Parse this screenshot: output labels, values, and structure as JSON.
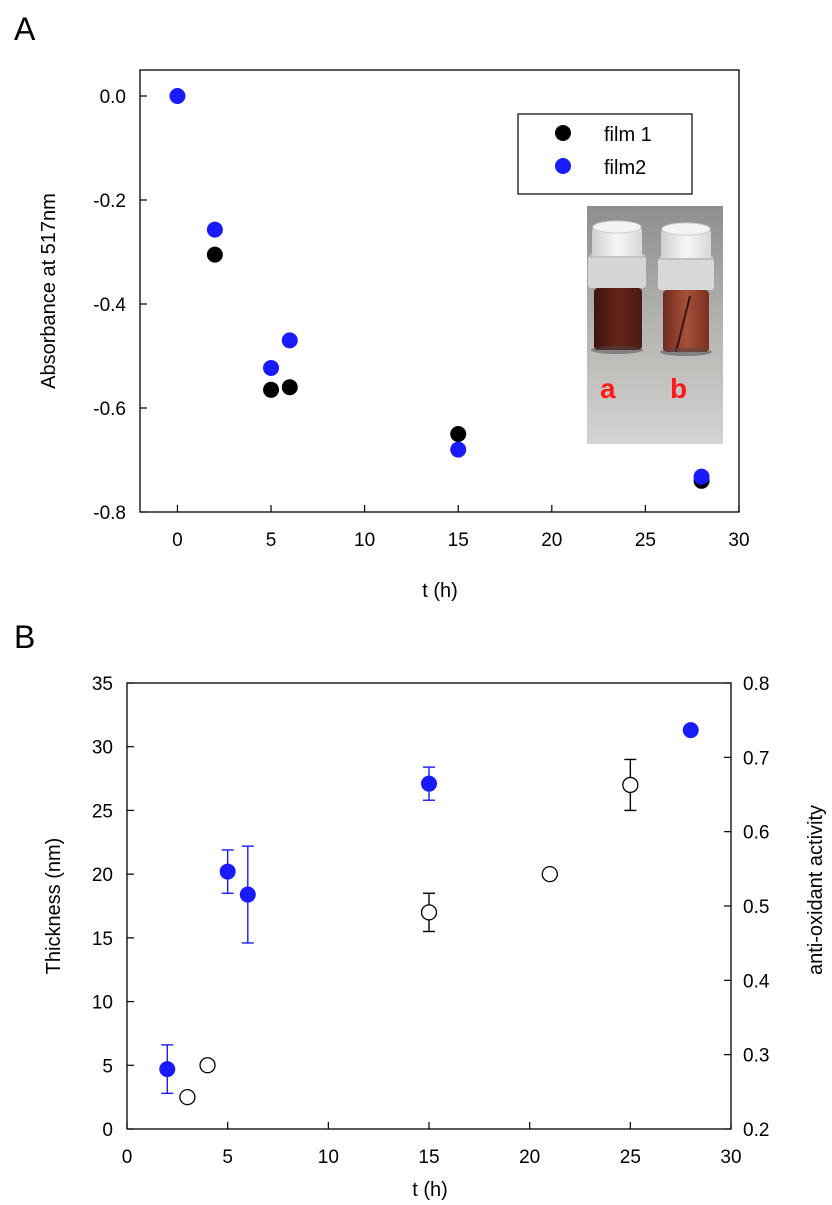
{
  "panels": {
    "a": {
      "letter": "A"
    },
    "b": {
      "letter": "B"
    }
  },
  "colors": {
    "film1": "#000000",
    "film2": "#1a1aff",
    "errorbar_blue": "#1a1aff",
    "errorbar_black": "#000000"
  },
  "inset": {
    "label_a": "a",
    "label_b": "b"
  },
  "chart_data": [
    {
      "type": "scatter",
      "title": "",
      "xlabel": "t (h)",
      "ylabel": "Absorbance at 517nm",
      "xlim": [
        -2,
        30
      ],
      "ylim": [
        -0.8,
        0.05
      ],
      "xticks": [
        0,
        5,
        10,
        15,
        20,
        25,
        30
      ],
      "yticks": [
        0.0,
        -0.2,
        -0.4,
        -0.6,
        -0.8
      ],
      "ytick_labels": [
        "0.0",
        "-0.2",
        "-0.4",
        "-0.6",
        "-0.8"
      ],
      "legend_position": "top-right",
      "series": [
        {
          "name": "film 1",
          "color": "#000000",
          "x": [
            2,
            5,
            6,
            15,
            28
          ],
          "y": [
            -0.305,
            -0.565,
            -0.56,
            -0.65,
            -0.74
          ]
        },
        {
          "name": "film2",
          "color": "#1a1aff",
          "x": [
            0,
            2,
            5,
            6,
            15,
            28
          ],
          "y": [
            0.0,
            -0.257,
            -0.523,
            -0.47,
            -0.68,
            -0.732
          ]
        }
      ]
    },
    {
      "type": "scatter",
      "title": "",
      "xlabel": "t (h)",
      "ylabel": "Thickness (nm)",
      "y2label": "anti-oxidant activity",
      "xlim": [
        0,
        30
      ],
      "ylim": [
        0,
        35
      ],
      "y2lim": [
        0.2,
        0.8
      ],
      "xticks": [
        0,
        5,
        10,
        15,
        20,
        25,
        30
      ],
      "yticks": [
        0,
        5,
        10,
        15,
        20,
        25,
        30,
        35
      ],
      "y2ticks": [
        0.2,
        0.3,
        0.4,
        0.5,
        0.6,
        0.7,
        0.8
      ],
      "y2tick_labels": [
        "0.2",
        "0.3",
        "0.4",
        "0.5",
        "0.6",
        "0.7",
        "0.8"
      ],
      "series": [
        {
          "axis": "left",
          "style": "filled",
          "color": "#1a1aff",
          "x": [
            2,
            5,
            6,
            15,
            28
          ],
          "y": [
            4.7,
            20.2,
            18.4,
            27.1,
            31.3
          ],
          "err": [
            1.9,
            1.7,
            3.8,
            1.3,
            0
          ]
        },
        {
          "axis": "left",
          "style": "open",
          "color": "#000000",
          "x": [
            3,
            4,
            15,
            21,
            25
          ],
          "y": [
            2.5,
            5.0,
            17.0,
            20.0,
            27.0
          ],
          "err": [
            0,
            0,
            1.5,
            0,
            2.0
          ]
        }
      ]
    }
  ]
}
